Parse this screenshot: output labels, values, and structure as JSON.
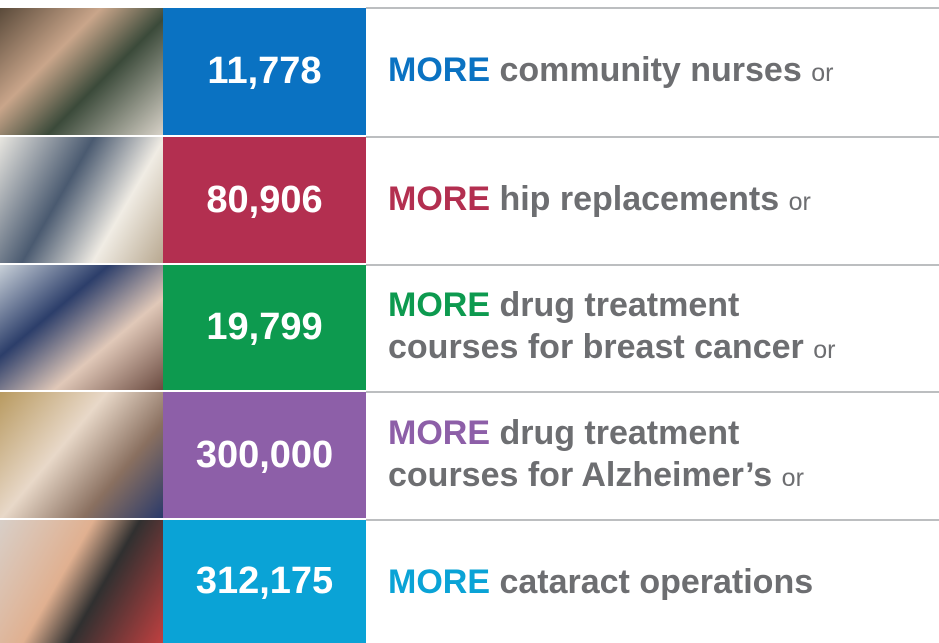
{
  "rows": [
    {
      "number": "11,778",
      "more": "MORE",
      "lines": [
        "community nurses"
      ],
      "or": "or",
      "color": "#0a72c2"
    },
    {
      "number": "80,906",
      "more": "MORE",
      "lines": [
        "hip replacements"
      ],
      "or": "or",
      "color": "#b32f50"
    },
    {
      "number": "19,799",
      "more": "MORE",
      "lines": [
        "drug treatment",
        "courses for breast cancer"
      ],
      "or": "or",
      "color": "#0d9a4f"
    },
    {
      "number": "300,000",
      "more": "MORE",
      "lines": [
        "drug treatment",
        "courses for Alzheimer’s"
      ],
      "or": "or",
      "color": "#8d5fa8"
    },
    {
      "number": "312,175",
      "more": "MORE",
      "lines": [
        "cataract operations"
      ],
      "or": null,
      "color": "#0aa3d6"
    }
  ]
}
